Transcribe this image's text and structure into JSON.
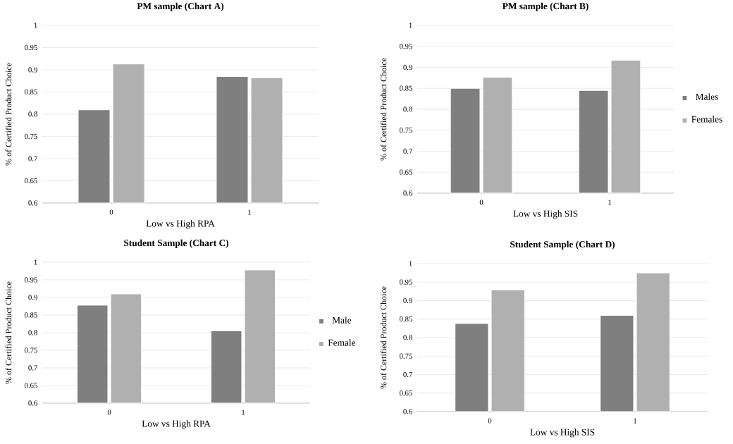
{
  "chart_data": [
    {
      "type": "bar",
      "title": "PM sample (Chart A)",
      "xlabel": "Low vs High  RPA",
      "ylabel": "% of Certified  Product Choice",
      "categories": [
        "0",
        "1"
      ],
      "series": [
        {
          "color": "#7f7f7f",
          "values": [
            0.81,
            0.885
          ]
        },
        {
          "color": "#b0b0b0",
          "values": [
            0.913,
            0.882
          ]
        }
      ],
      "ylim": [
        0.6,
        1
      ],
      "yticks": [
        0.6,
        0.65,
        0.7,
        0.75,
        0.8,
        0.85,
        0.9,
        0.95,
        1
      ],
      "grid": "y"
    },
    {
      "type": "bar",
      "title": "PM sample (Chart B)",
      "xlabel": "Low vs High  SIS",
      "ylabel": "% of Certified  Product Choice",
      "categories": [
        "0",
        "1"
      ],
      "series": [
        {
          "name": "Males",
          "color": "#7f7f7f",
          "values": [
            0.85,
            0.845
          ]
        },
        {
          "name": "Females",
          "color": "#b0b0b0",
          "values": [
            0.876,
            0.917
          ]
        }
      ],
      "ylim": [
        0.6,
        1
      ],
      "yticks": [
        0.6,
        0.65,
        0.7,
        0.75,
        0.8,
        0.85,
        0.9,
        0.95,
        1
      ],
      "grid": "y",
      "legend": "right"
    },
    {
      "type": "bar",
      "title": "Student Sample (Chart C)",
      "xlabel": "Low vs High  RPA",
      "ylabel": "% of Certified  Product Choice",
      "categories": [
        "0",
        "1"
      ],
      "series": [
        {
          "name": "Male",
          "color": "#7f7f7f",
          "values": [
            0.878,
            0.805
          ]
        },
        {
          "name": "Female",
          "color": "#b0b0b0",
          "values": [
            0.91,
            0.978
          ]
        }
      ],
      "ylim": [
        0.6,
        1
      ],
      "yticks": [
        0.6,
        0.65,
        0.7,
        0.75,
        0.8,
        0.85,
        0.9,
        0.95,
        1
      ],
      "grid": "y",
      "legend": "right"
    },
    {
      "type": "bar",
      "title": "Student Sample (Chart D)",
      "xlabel": "Low vs High  SIS",
      "ylabel": "% of Certified  Product Choice",
      "categories": [
        "0",
        "1"
      ],
      "series": [
        {
          "color": "#7f7f7f",
          "values": [
            0.838,
            0.86
          ]
        },
        {
          "color": "#b0b0b0",
          "values": [
            0.929,
            0.975
          ]
        }
      ],
      "ylim": [
        0.6,
        1
      ],
      "yticks": [
        0.6,
        0.65,
        0.7,
        0.75,
        0.8,
        0.85,
        0.9,
        0.95,
        1
      ],
      "grid": "y"
    }
  ]
}
